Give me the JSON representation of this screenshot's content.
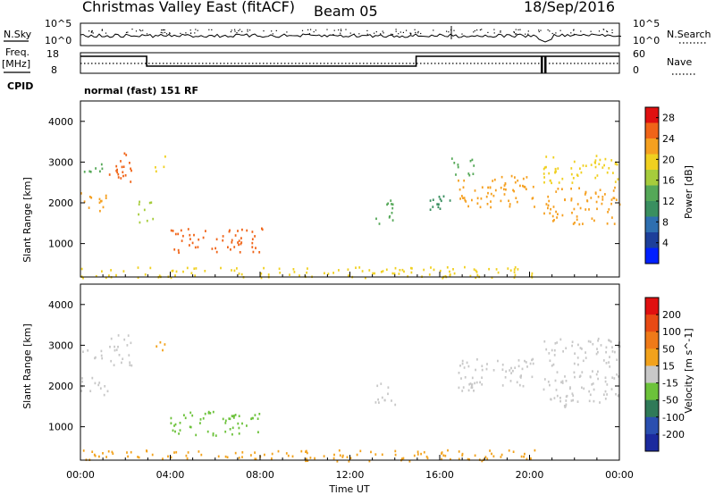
{
  "header": {
    "title": "Christmas Valley East (fitACF)",
    "beam": "Beam 05",
    "date": "18/Sep/2016"
  },
  "top_panels": {
    "nsky_label": "N.Sky",
    "nsearch_label": "N.Search",
    "noise_tick_high": "10^5",
    "noise_tick_low": "10^0",
    "freq_label_1": "Freq.",
    "freq_label_2": "[MHz]",
    "freq_tick_high": "18",
    "freq_tick_low": "8",
    "nave_label": "Nave",
    "nave_tick_high": "60",
    "nave_tick_low": "0",
    "cpid_label": "CPID",
    "cpid_value": "normal (fast) 151 RF"
  },
  "chart_data": [
    {
      "type": "heatmap",
      "name": "Power",
      "ylabel": "Slant Range [km]",
      "xlabel": "Time UT",
      "x_ticks": [
        "00:00",
        "04:00",
        "08:00",
        "12:00",
        "16:00",
        "20:00",
        "00:00"
      ],
      "xlim_hours": [
        0,
        24
      ],
      "ylim_km": [
        180,
        4500
      ],
      "y_ticks": [
        1000,
        2000,
        3000,
        4000
      ],
      "colorbar": {
        "label": "Power [dB]",
        "ticks": [
          4,
          8,
          12,
          16,
          20,
          24,
          28
        ],
        "range": [
          0,
          30
        ],
        "colors": [
          "#0020ff",
          "#1d3f9a",
          "#2e6fb0",
          "#3a8f60",
          "#55a858",
          "#a6cc3c",
          "#f0d020",
          "#f5a020",
          "#f06418",
          "#e01010"
        ]
      },
      "regions": [
        {
          "t0": 0.0,
          "t1": 1.2,
          "r0": 1800,
          "r1": 2300,
          "level": 22
        },
        {
          "t0": 0.0,
          "t1": 1.0,
          "r0": 2700,
          "r1": 3000,
          "level": 14
        },
        {
          "t0": 1.2,
          "t1": 2.3,
          "r0": 2500,
          "r1": 3300,
          "level": 24
        },
        {
          "t0": 2.5,
          "t1": 3.2,
          "r0": 1500,
          "r1": 2100,
          "level": 16
        },
        {
          "t0": 3.3,
          "t1": 3.8,
          "r0": 2800,
          "r1": 3200,
          "level": 18
        },
        {
          "t0": 4.0,
          "t1": 8.1,
          "r0": 800,
          "r1": 1400,
          "level": 26
        },
        {
          "t0": 0.0,
          "t1": 20.2,
          "r0": 180,
          "r1": 450,
          "level": 18
        },
        {
          "t0": 13.1,
          "t1": 14.0,
          "r0": 1500,
          "r1": 2100,
          "level": 14
        },
        {
          "t0": 15.3,
          "t1": 16.5,
          "r0": 1800,
          "r1": 2300,
          "level": 10
        },
        {
          "t0": 16.7,
          "t1": 20.2,
          "r0": 1900,
          "r1": 2700,
          "level": 22
        },
        {
          "t0": 16.5,
          "t1": 17.5,
          "r0": 2700,
          "r1": 3200,
          "level": 14
        },
        {
          "t0": 20.6,
          "t1": 24.0,
          "r0": 1500,
          "r1": 2400,
          "level": 23
        },
        {
          "t0": 20.6,
          "t1": 24.0,
          "r0": 2500,
          "r1": 3200,
          "level": 18
        }
      ]
    },
    {
      "type": "heatmap",
      "name": "Velocity",
      "ylabel": "Slant Range [km]",
      "xlabel": "Time UT",
      "x_ticks": [
        "00:00",
        "04:00",
        "08:00",
        "12:00",
        "16:00",
        "20:00",
        "00:00"
      ],
      "xlim_hours": [
        0,
        24
      ],
      "ylim_km": [
        180,
        4500
      ],
      "y_ticks": [
        1000,
        2000,
        3000,
        4000
      ],
      "colorbar": {
        "label": "Velocity [m s^-1]",
        "ticks": [
          "200",
          "100",
          "50",
          "15",
          "-15",
          "-50",
          "-100",
          "-200"
        ],
        "colors": [
          "#1b2a9e",
          "#2a4fb0",
          "#2f7a58",
          "#6cc23a",
          "#c8c8c8",
          "#f2a21c",
          "#ef7a18",
          "#e84a14",
          "#e01010"
        ]
      },
      "regions": [
        {
          "t0": 0.0,
          "t1": 1.2,
          "r0": 1800,
          "r1": 2300,
          "level": 4
        },
        {
          "t0": 0.0,
          "t1": 1.0,
          "r0": 2700,
          "r1": 3000,
          "level": 4
        },
        {
          "t0": 1.2,
          "t1": 2.3,
          "r0": 2500,
          "r1": 3300,
          "level": 4
        },
        {
          "t0": 3.3,
          "t1": 3.8,
          "r0": 2800,
          "r1": 3200,
          "level": 5
        },
        {
          "t0": 4.0,
          "t1": 8.1,
          "r0": 800,
          "r1": 1400,
          "level": 3
        },
        {
          "t0": 0.0,
          "t1": 20.2,
          "r0": 180,
          "r1": 450,
          "level": 5
        },
        {
          "t0": 13.1,
          "t1": 14.0,
          "r0": 1500,
          "r1": 2100,
          "level": 4
        },
        {
          "t0": 16.7,
          "t1": 20.2,
          "r0": 1900,
          "r1": 2700,
          "level": 4
        },
        {
          "t0": 20.6,
          "t1": 24.0,
          "r0": 1500,
          "r1": 2400,
          "level": 4
        },
        {
          "t0": 20.6,
          "t1": 24.0,
          "r0": 2500,
          "r1": 3200,
          "level": 4
        }
      ]
    }
  ]
}
